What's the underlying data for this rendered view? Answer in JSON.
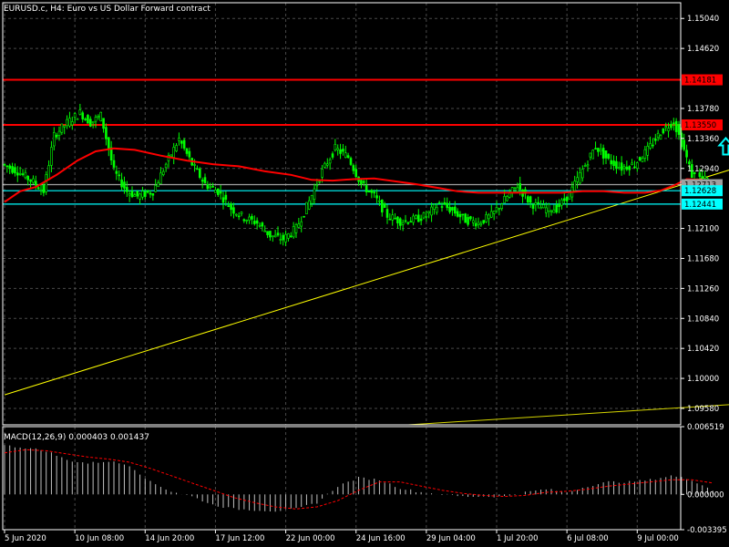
{
  "chart_data": {
    "type": "candlestick",
    "symbol": "EURUSD.c",
    "timeframe": "H4",
    "header": "EURUSD.c, H4:  Euro vs US Dollar Forward contract",
    "price_axis": {
      "range": [
        1.0935,
        1.1526
      ],
      "ticks": [
        "1.15040",
        "1.14620",
        "1.13780",
        "1.13360",
        "1.12940",
        "1.12100",
        "1.11680",
        "1.11260",
        "1.10840",
        "1.10420",
        "1.10000",
        "1.09580"
      ]
    },
    "x_axis_labels": [
      "5 Jun 2020",
      "10 Jun 08:00",
      "14 Jun 20:00",
      "17 Jun 12:00",
      "22 Jun 00:00",
      "24 Jun 16:00",
      "29 Jun 04:00",
      "1 Jul 20:00",
      "6 Jul 08:00",
      "9 Jul 00:00"
    ],
    "x_axis_bars": [
      0,
      27,
      54,
      81,
      108,
      135,
      162,
      189,
      216,
      243
    ],
    "bars_total": 260,
    "price_levels": [
      {
        "value": 1.14181,
        "label": "1.14181",
        "color": "#ff0000",
        "kind": "horizontal"
      },
      {
        "value": 1.1355,
        "label": "1.13550",
        "color": "#ff0000",
        "kind": "horizontal"
      },
      {
        "value": 1.12713,
        "label": "1.12713",
        "color": "#a0a0a0",
        "kind": "horizontal"
      },
      {
        "value": 1.12628,
        "label": "1.12628",
        "color": "#00ffff",
        "kind": "horizontal"
      },
      {
        "value": 1.12441,
        "label": "1.12441",
        "color": "#00ffff",
        "kind": "horizontal"
      }
    ],
    "trendlines": [
      {
        "x1_bar": 0,
        "p1": 1.0977,
        "x2_bar": 290,
        "p2": 1.1305,
        "color": "#ffff00"
      },
      {
        "x1_bar": 155,
        "p1": 1.0935,
        "x2_bar": 295,
        "p2": 1.0967,
        "color": "#d4d400"
      }
    ],
    "series": [
      {
        "name": "price",
        "type": "candlestick",
        "color": "#00ff00",
        "path": [
          [
            0,
            1.13
          ],
          [
            6,
            1.129
          ],
          [
            12,
            1.1275
          ],
          [
            16,
            1.1262
          ],
          [
            20,
            1.134
          ],
          [
            25,
            1.1358
          ],
          [
            30,
            1.1372
          ],
          [
            34,
            1.1358
          ],
          [
            38,
            1.1368
          ],
          [
            43,
            1.129
          ],
          [
            48,
            1.1262
          ],
          [
            52,
            1.1255
          ],
          [
            58,
            1.1262
          ],
          [
            63,
            1.13
          ],
          [
            68,
            1.1335
          ],
          [
            73,
            1.13
          ],
          [
            78,
            1.1272
          ],
          [
            83,
            1.1262
          ],
          [
            88,
            1.1238
          ],
          [
            93,
            1.1225
          ],
          [
            98,
            1.1218
          ],
          [
            103,
            1.12
          ],
          [
            108,
            1.1195
          ],
          [
            113,
            1.121
          ],
          [
            118,
            1.1248
          ],
          [
            123,
            1.129
          ],
          [
            128,
            1.1322
          ],
          [
            133,
            1.131
          ],
          [
            138,
            1.1272
          ],
          [
            143,
            1.1255
          ],
          [
            148,
            1.1228
          ],
          [
            153,
            1.122
          ],
          [
            158,
            1.1222
          ],
          [
            163,
            1.1228
          ],
          [
            168,
            1.1245
          ],
          [
            173,
            1.1235
          ],
          [
            178,
            1.1222
          ],
          [
            183,
            1.1218
          ],
          [
            188,
            1.1228
          ],
          [
            193,
            1.125
          ],
          [
            198,
            1.127
          ],
          [
            203,
            1.1245
          ],
          [
            208,
            1.1238
          ],
          [
            213,
            1.1238
          ],
          [
            218,
            1.1258
          ],
          [
            223,
            1.1292
          ],
          [
            228,
            1.1325
          ],
          [
            233,
            1.1305
          ],
          [
            238,
            1.1295
          ],
          [
            243,
            1.13
          ],
          [
            248,
            1.132
          ],
          [
            253,
            1.1345
          ],
          [
            258,
            1.136
          ],
          [
            262,
            1.132
          ],
          [
            265,
            1.1285
          ],
          [
            270,
            1.1278
          ]
        ]
      },
      {
        "name": "moving average",
        "type": "line",
        "color": "#ff0000",
        "path": [
          [
            0,
            1.1247
          ],
          [
            6,
            1.1262
          ],
          [
            12,
            1.1268
          ],
          [
            20,
            1.1285
          ],
          [
            28,
            1.1305
          ],
          [
            35,
            1.1318
          ],
          [
            42,
            1.1322
          ],
          [
            50,
            1.132
          ],
          [
            60,
            1.1312
          ],
          [
            70,
            1.1305
          ],
          [
            80,
            1.13
          ],
          [
            90,
            1.1297
          ],
          [
            100,
            1.129
          ],
          [
            110,
            1.1285
          ],
          [
            118,
            1.1278
          ],
          [
            126,
            1.1277
          ],
          [
            134,
            1.1279
          ],
          [
            142,
            1.128
          ],
          [
            150,
            1.1276
          ],
          [
            158,
            1.1272
          ],
          [
            166,
            1.1267
          ],
          [
            174,
            1.1262
          ],
          [
            182,
            1.126
          ],
          [
            190,
            1.126
          ],
          [
            198,
            1.126
          ],
          [
            206,
            1.126
          ],
          [
            214,
            1.126
          ],
          [
            222,
            1.1262
          ],
          [
            230,
            1.1262
          ],
          [
            238,
            1.126
          ],
          [
            246,
            1.126
          ],
          [
            252,
            1.1263
          ],
          [
            257,
            1.127
          ],
          [
            262,
            1.1279
          ],
          [
            268,
            1.1278
          ],
          [
            271,
            1.1275
          ]
        ]
      }
    ],
    "annotations": [
      {
        "type": "up-arrow",
        "bar": 277,
        "price": 1.1325,
        "color": "#00ffff"
      }
    ],
    "macd": {
      "header": "MACD(12,26,9) 0.000403 0.001437",
      "params": [
        12,
        26,
        9
      ],
      "main": 0.000403,
      "signal": 0.001437,
      "range": [
        -0.003395,
        0.006519
      ],
      "ticks": [
        "0.006519",
        "0.000000",
        "-0.003395"
      ],
      "histogram": [
        [
          0,
          0.0047
        ],
        [
          8,
          0.0045
        ],
        [
          16,
          0.0042
        ],
        [
          24,
          0.0033
        ],
        [
          32,
          0.003
        ],
        [
          40,
          0.0032
        ],
        [
          48,
          0.0028
        ],
        [
          56,
          0.0012
        ],
        [
          64,
          0.0003
        ],
        [
          72,
          -0.0002
        ],
        [
          80,
          -0.001
        ],
        [
          88,
          -0.0014
        ],
        [
          96,
          -0.0015
        ],
        [
          104,
          -0.0016
        ],
        [
          112,
          -0.0014
        ],
        [
          120,
          -0.0008
        ],
        [
          128,
          0.0008
        ],
        [
          136,
          0.0016
        ],
        [
          144,
          0.0014
        ],
        [
          152,
          0.0006
        ],
        [
          160,
          0.0002
        ],
        [
          168,
          0.0
        ],
        [
          176,
          -0.0002
        ],
        [
          184,
          -0.0002
        ],
        [
          192,
          -0.0002
        ],
        [
          200,
          0.0002
        ],
        [
          208,
          0.0005
        ],
        [
          216,
          0.0002
        ],
        [
          224,
          0.0008
        ],
        [
          232,
          0.0012
        ],
        [
          240,
          0.0012
        ],
        [
          248,
          0.0014
        ],
        [
          256,
          0.0018
        ],
        [
          264,
          0.0014
        ],
        [
          272,
          0.0004
        ]
      ],
      "signal_line": [
        [
          0,
          0.004
        ],
        [
          8,
          0.0043
        ],
        [
          16,
          0.0042
        ],
        [
          24,
          0.0039
        ],
        [
          32,
          0.0036
        ],
        [
          40,
          0.0034
        ],
        [
          48,
          0.0031
        ],
        [
          56,
          0.0025
        ],
        [
          64,
          0.0018
        ],
        [
          72,
          0.0011
        ],
        [
          80,
          0.0004
        ],
        [
          88,
          -0.0003
        ],
        [
          96,
          -0.0008
        ],
        [
          104,
          -0.0012
        ],
        [
          112,
          -0.0014
        ],
        [
          120,
          -0.0012
        ],
        [
          128,
          -0.0006
        ],
        [
          136,
          0.0004
        ],
        [
          144,
          0.0012
        ],
        [
          152,
          0.0012
        ],
        [
          160,
          0.0008
        ],
        [
          168,
          0.0004
        ],
        [
          176,
          0.0001
        ],
        [
          184,
          -0.0001
        ],
        [
          192,
          -0.0002
        ],
        [
          200,
          -0.0001
        ],
        [
          208,
          0.0002
        ],
        [
          216,
          0.0003
        ],
        [
          224,
          0.0005
        ],
        [
          232,
          0.0008
        ],
        [
          240,
          0.001
        ],
        [
          248,
          0.0012
        ],
        [
          256,
          0.0014
        ],
        [
          264,
          0.0014
        ],
        [
          272,
          0.0011
        ]
      ],
      "histogram_color": "#c0c0c0",
      "signal_color": "#ff0000"
    },
    "grid": true,
    "background": "#000000",
    "foreground": "#ffffff",
    "grid_color": "#4a4a4a"
  }
}
